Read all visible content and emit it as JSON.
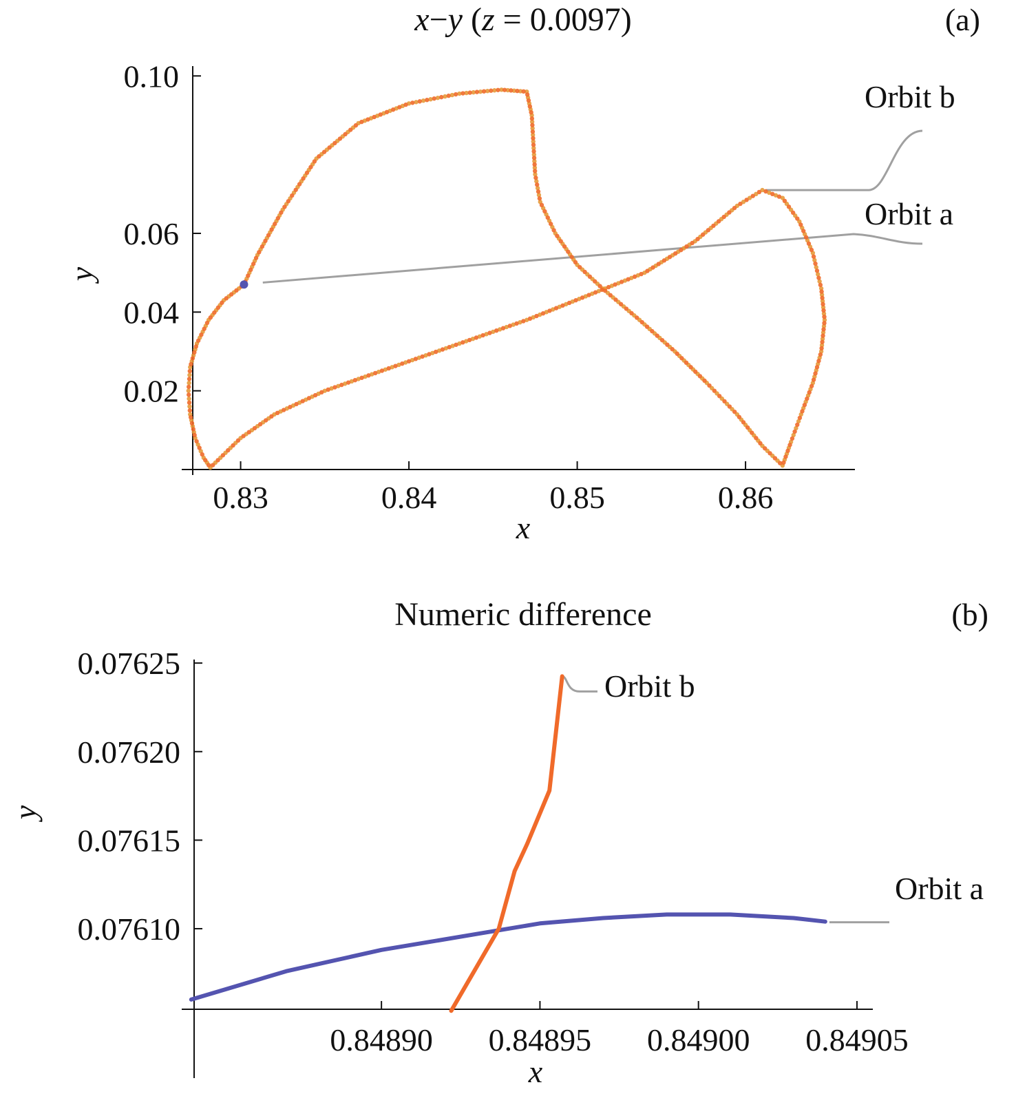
{
  "colors": {
    "orbit_a": "#5454b0",
    "orbit_b_curve_a": "#e69a3a",
    "orbit_b_curve_b": "#f06a2a",
    "callout_line": "#a0a0a0",
    "axis": "#111111"
  },
  "chart_data": [
    {
      "panel": "a",
      "panel_tag": "(a)",
      "type": "scatter",
      "title_parts": {
        "x": "x",
        "dash": "−",
        "y": "y",
        "open": " (",
        "z": "z",
        "eq": " = 0.0097)"
      },
      "xlabel": "x",
      "ylabel": "y",
      "xlim": [
        0.8265,
        0.8665
      ],
      "ylim": [
        0.0,
        0.1025
      ],
      "xticks": [
        {
          "value": 0.83,
          "label": "0.83"
        },
        {
          "value": 0.84,
          "label": "0.84"
        },
        {
          "value": 0.85,
          "label": "0.85"
        },
        {
          "value": 0.86,
          "label": "0.86"
        }
      ],
      "yticks": [
        {
          "value": 0.02,
          "label": "0.02"
        },
        {
          "value": 0.04,
          "label": "0.04"
        },
        {
          "value": 0.06,
          "label": "0.06"
        },
        {
          "value": 0.1,
          "label": "0.10"
        }
      ],
      "series": [
        {
          "name": "Orbit a",
          "points": [
            [
              0.8302,
              0.047
            ],
            [
              0.829,
              0.043
            ],
            [
              0.8281,
              0.038
            ],
            [
              0.8274,
              0.032
            ],
            [
              0.827,
              0.026
            ],
            [
              0.8269,
              0.02
            ],
            [
              0.827,
              0.014
            ],
            [
              0.8273,
              0.008
            ],
            [
              0.8278,
              0.003
            ],
            [
              0.8282,
              0.0005
            ],
            [
              0.8288,
              0.003
            ],
            [
              0.83,
              0.008
            ],
            [
              0.832,
              0.014
            ],
            [
              0.835,
              0.02
            ],
            [
              0.839,
              0.026
            ],
            [
              0.843,
              0.032
            ],
            [
              0.847,
              0.038
            ],
            [
              0.8505,
              0.044
            ],
            [
              0.854,
              0.05
            ],
            [
              0.857,
              0.058
            ],
            [
              0.8595,
              0.067
            ],
            [
              0.861,
              0.071
            ],
            [
              0.8622,
              0.069
            ],
            [
              0.8632,
              0.063
            ],
            [
              0.864,
              0.055
            ],
            [
              0.8645,
              0.046
            ],
            [
              0.8647,
              0.038
            ],
            [
              0.8645,
              0.03
            ],
            [
              0.864,
              0.022
            ],
            [
              0.8633,
              0.014
            ],
            [
              0.8627,
              0.007
            ],
            [
              0.8622,
              0.001
            ],
            [
              0.861,
              0.006
            ],
            [
              0.8595,
              0.014
            ],
            [
              0.8577,
              0.022
            ],
            [
              0.8558,
              0.03
            ],
            [
              0.8537,
              0.038
            ],
            [
              0.8515,
              0.046
            ],
            [
              0.85,
              0.052
            ],
            [
              0.8487,
              0.06
            ],
            [
              0.8478,
              0.068
            ],
            [
              0.8475,
              0.075
            ],
            [
              0.8473,
              0.09
            ],
            [
              0.847,
              0.096
            ],
            [
              0.8455,
              0.0965
            ],
            [
              0.843,
              0.0955
            ],
            [
              0.84,
              0.093
            ],
            [
              0.837,
              0.088
            ],
            [
              0.8345,
              0.079
            ],
            [
              0.8325,
              0.066
            ],
            [
              0.831,
              0.0545
            ],
            [
              0.8302,
              0.047
            ]
          ]
        },
        {
          "name": "Orbit b",
          "points": [
            [
              0.8302,
              0.047
            ],
            [
              0.829,
              0.043
            ],
            [
              0.8281,
              0.038
            ],
            [
              0.8274,
              0.032
            ],
            [
              0.827,
              0.026
            ],
            [
              0.8269,
              0.02
            ],
            [
              0.827,
              0.014
            ],
            [
              0.8273,
              0.008
            ],
            [
              0.8278,
              0.003
            ],
            [
              0.8282,
              0.0005
            ],
            [
              0.8288,
              0.003
            ],
            [
              0.83,
              0.008
            ],
            [
              0.832,
              0.014
            ],
            [
              0.835,
              0.02
            ],
            [
              0.839,
              0.026
            ],
            [
              0.843,
              0.032
            ],
            [
              0.847,
              0.038
            ],
            [
              0.8505,
              0.044
            ],
            [
              0.854,
              0.05
            ],
            [
              0.857,
              0.058
            ],
            [
              0.8595,
              0.067
            ],
            [
              0.861,
              0.071
            ],
            [
              0.8622,
              0.069
            ],
            [
              0.8632,
              0.063
            ],
            [
              0.864,
              0.055
            ],
            [
              0.8645,
              0.046
            ],
            [
              0.8647,
              0.038
            ],
            [
              0.8645,
              0.03
            ],
            [
              0.864,
              0.022
            ],
            [
              0.8633,
              0.014
            ],
            [
              0.8627,
              0.007
            ],
            [
              0.8622,
              0.001
            ],
            [
              0.861,
              0.006
            ],
            [
              0.8595,
              0.014
            ],
            [
              0.8577,
              0.022
            ],
            [
              0.8558,
              0.03
            ],
            [
              0.8537,
              0.038
            ],
            [
              0.8515,
              0.046
            ],
            [
              0.85,
              0.052
            ],
            [
              0.8487,
              0.06
            ],
            [
              0.8478,
              0.068
            ],
            [
              0.8475,
              0.075
            ],
            [
              0.8473,
              0.09
            ],
            [
              0.847,
              0.096
            ],
            [
              0.8455,
              0.0965
            ],
            [
              0.843,
              0.0955
            ],
            [
              0.84,
              0.093
            ],
            [
              0.837,
              0.088
            ],
            [
              0.8345,
              0.079
            ],
            [
              0.8325,
              0.066
            ],
            [
              0.831,
              0.0545
            ],
            [
              0.8302,
              0.047
            ]
          ]
        }
      ],
      "callouts": [
        {
          "label": "Orbit b",
          "anchor": [
            0.8612,
            0.071
          ]
        },
        {
          "label": "Orbit a",
          "anchor": [
            0.8305,
            0.0475
          ]
        }
      ]
    },
    {
      "panel": "b",
      "panel_tag": "(b)",
      "type": "line",
      "title": "Numeric difference",
      "xlabel": "x",
      "ylabel": "y",
      "xlim": [
        0.848837,
        0.849055
      ],
      "ylim": [
        0.0760545,
        0.076252
      ],
      "xticks": [
        {
          "value": 0.8489,
          "label": "0.84890"
        },
        {
          "value": 0.84895,
          "label": "0.84895"
        },
        {
          "value": 0.849,
          "label": "0.84900"
        },
        {
          "value": 0.84905,
          "label": "0.84905"
        }
      ],
      "yticks": [
        {
          "value": 0.0761,
          "label": "0.07610"
        },
        {
          "value": 0.07615,
          "label": "0.07615"
        },
        {
          "value": 0.0762,
          "label": "0.07620"
        },
        {
          "value": 0.07625,
          "label": "0.07625"
        }
      ],
      "series": [
        {
          "name": "Orbit a",
          "points": [
            [
              0.84884,
              0.07606
            ],
            [
              0.84887,
              0.076076
            ],
            [
              0.8489,
              0.076088
            ],
            [
              0.84893,
              0.076097
            ],
            [
              0.84895,
              0.076103
            ],
            [
              0.84897,
              0.076106
            ],
            [
              0.84899,
              0.076108
            ],
            [
              0.84901,
              0.076108
            ],
            [
              0.84903,
              0.076106
            ],
            [
              0.84904,
              0.076104
            ]
          ]
        },
        {
          "name": "Orbit b",
          "points": [
            [
              0.848922,
              0.0760536
            ],
            [
              0.848937,
              0.0761
            ],
            [
              0.848942,
              0.0761325
            ],
            [
              0.848946,
              0.076148
            ],
            [
              0.848953,
              0.076178
            ],
            [
              0.848957,
              0.0762425
            ]
          ]
        }
      ],
      "callouts": [
        {
          "label": "Orbit b",
          "anchor": [
            0.848957,
            0.0762425
          ]
        },
        {
          "label": "Orbit a",
          "anchor": [
            0.84904,
            0.076104
          ]
        }
      ]
    }
  ]
}
